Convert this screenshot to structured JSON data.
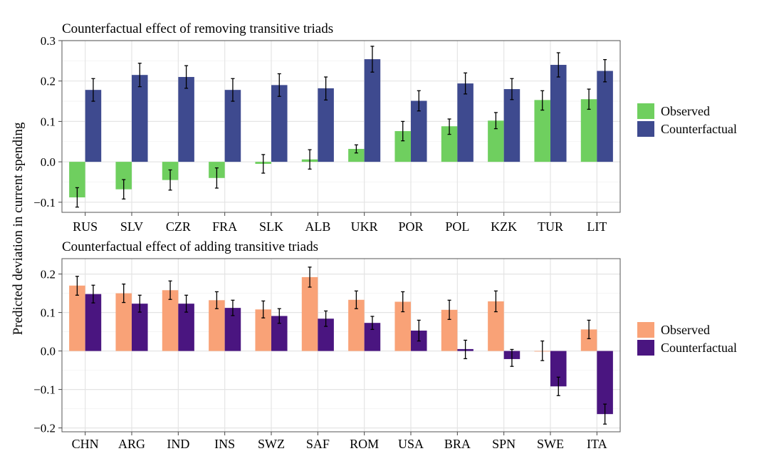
{
  "y_axis_label": "Predicted deviation in current spending",
  "chart_data": [
    {
      "type": "bar",
      "title": "Counterfactual effect of removing transitive triads",
      "xlabel": "",
      "ylabel": "Predicted deviation in current spending",
      "ylim": [
        -0.125,
        0.3
      ],
      "yticks": [
        -0.1,
        0.0,
        0.1,
        0.2,
        0.3
      ],
      "tick_labels": [
        "−0.1",
        "0.0",
        "0.1",
        "0.2",
        "0.3"
      ],
      "grid": true,
      "legend": "right",
      "categories": [
        "RUS",
        "SLV",
        "CZR",
        "FRA",
        "SLK",
        "ALB",
        "UKR",
        "POR",
        "POL",
        "KZK",
        "TUR",
        "LIT"
      ],
      "series": [
        {
          "name": "Observed",
          "color": "#6fcf5f",
          "values": [
            -0.088,
            -0.068,
            -0.045,
            -0.04,
            -0.005,
            0.006,
            0.032,
            0.076,
            0.088,
            0.102,
            0.153,
            0.155
          ],
          "err_low": [
            -0.112,
            -0.092,
            -0.07,
            -0.065,
            -0.028,
            -0.018,
            0.022,
            0.052,
            0.068,
            0.082,
            0.128,
            0.13
          ],
          "err_high": [
            -0.064,
            -0.044,
            -0.02,
            -0.015,
            0.018,
            0.03,
            0.042,
            0.1,
            0.106,
            0.122,
            0.176,
            0.18
          ]
        },
        {
          "name": "Counterfactual",
          "color": "#3e4a8f",
          "values": [
            0.178,
            0.215,
            0.21,
            0.178,
            0.19,
            0.182,
            0.254,
            0.151,
            0.194,
            0.18,
            0.24,
            0.225
          ],
          "err_low": [
            0.15,
            0.186,
            0.182,
            0.15,
            0.162,
            0.153,
            0.222,
            0.126,
            0.168,
            0.154,
            0.21,
            0.198
          ],
          "err_high": [
            0.206,
            0.244,
            0.238,
            0.206,
            0.218,
            0.21,
            0.286,
            0.176,
            0.22,
            0.206,
            0.27,
            0.253
          ]
        }
      ]
    },
    {
      "type": "bar",
      "title": "Counterfactual effect of adding transitive triads",
      "xlabel": "",
      "ylabel": "Predicted deviation in current spending",
      "ylim": [
        -0.21,
        0.24
      ],
      "yticks": [
        -0.2,
        -0.1,
        0.0,
        0.1,
        0.2
      ],
      "tick_labels": [
        "−0.2",
        "−0.1",
        "0.0",
        "0.1",
        "0.2"
      ],
      "grid": true,
      "legend": "right",
      "categories": [
        "CHN",
        "ARG",
        "IND",
        "INS",
        "SWZ",
        "SAF",
        "ROM",
        "USA",
        "BRA",
        "SPN",
        "SWE",
        "ITA"
      ],
      "series": [
        {
          "name": "Observed",
          "color": "#f9a277",
          "values": [
            0.17,
            0.15,
            0.158,
            0.132,
            0.108,
            0.192,
            0.133,
            0.128,
            0.107,
            0.129,
            0.0,
            0.056
          ],
          "err_low": [
            0.145,
            0.126,
            0.134,
            0.11,
            0.086,
            0.166,
            0.11,
            0.102,
            0.082,
            0.102,
            -0.025,
            0.032
          ],
          "err_high": [
            0.194,
            0.174,
            0.182,
            0.154,
            0.13,
            0.218,
            0.156,
            0.154,
            0.132,
            0.156,
            0.026,
            0.08
          ]
        },
        {
          "name": "Counterfactual",
          "color": "#4a1580",
          "values": [
            0.148,
            0.123,
            0.123,
            0.112,
            0.091,
            0.084,
            0.073,
            0.053,
            0.005,
            -0.021,
            -0.092,
            -0.164
          ],
          "err_low": [
            0.125,
            0.101,
            0.101,
            0.092,
            0.072,
            0.064,
            0.056,
            0.026,
            -0.02,
            -0.04,
            -0.116,
            -0.19
          ],
          "err_high": [
            0.171,
            0.145,
            0.145,
            0.132,
            0.11,
            0.104,
            0.09,
            0.08,
            0.028,
            0.004,
            -0.068,
            -0.138
          ]
        }
      ]
    }
  ]
}
